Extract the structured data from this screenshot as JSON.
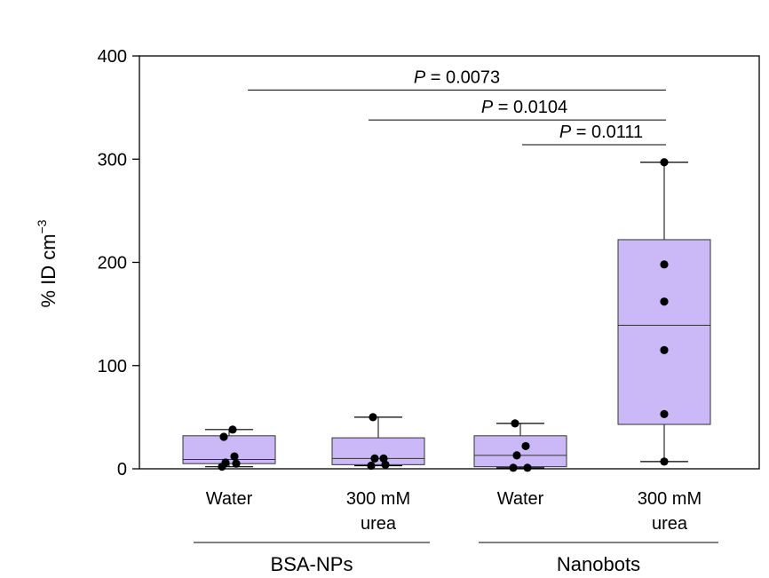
{
  "chart_data": {
    "type": "box",
    "ylabel": "% ID cm",
    "ylabel_sup": "−3",
    "ylim": [
      0,
      400
    ],
    "yticks": [
      "0",
      "100",
      "200",
      "300",
      "400"
    ],
    "box_color": "#cbb8f7",
    "categories": [
      {
        "lines": [
          "Water"
        ],
        "group": "BSA-NPs",
        "whisker_low": 2,
        "q1": 5,
        "median": 9,
        "q3": 32,
        "whisker_high": 38,
        "points": [
          2,
          5,
          6,
          12,
          31,
          38
        ]
      },
      {
        "lines": [
          "300 mM",
          "urea"
        ],
        "group": "BSA-NPs",
        "whisker_low": 3,
        "q1": 4,
        "median": 10,
        "q3": 30,
        "whisker_high": 50,
        "points": [
          3,
          4,
          10,
          10,
          50
        ]
      },
      {
        "lines": [
          "Water"
        ],
        "group": "Nanobots",
        "whisker_low": 1,
        "q1": 2,
        "median": 13,
        "q3": 32,
        "whisker_high": 44,
        "points": [
          1,
          1,
          13,
          22,
          44
        ]
      },
      {
        "lines": [
          "300 mM",
          "urea"
        ],
        "group": "Nanobots",
        "whisker_low": 7,
        "q1": 43,
        "median": 139,
        "q3": 222,
        "whisker_high": 297,
        "points": [
          7,
          53,
          115,
          162,
          198,
          297
        ]
      }
    ],
    "groups": [
      {
        "name": "BSA-NPs",
        "categories": [
          0,
          1
        ]
      },
      {
        "name": "Nanobots",
        "categories": [
          2,
          3
        ]
      }
    ],
    "comparisons": [
      {
        "p_label": "P",
        "p_value": " = 0.0073",
        "from": 0,
        "to": 3,
        "y": 367
      },
      {
        "p_label": "P",
        "p_value": " = 0.0104",
        "from": 1,
        "to": 3,
        "y": 338
      },
      {
        "p_label": "P",
        "p_value": " = 0.0111",
        "from": 2,
        "to": 3,
        "y": 314
      }
    ]
  }
}
